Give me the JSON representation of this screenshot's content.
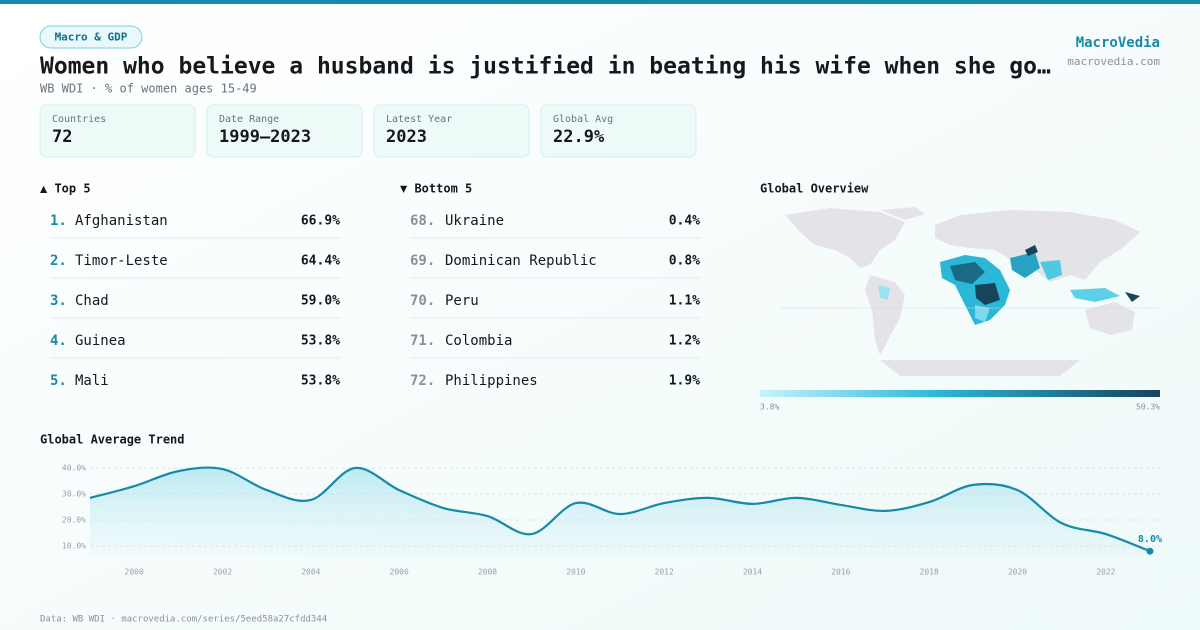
{
  "header": {
    "tag": "Macro & GDP",
    "title": "Women who believe a husband is justified in beating his wife when she go…",
    "subtitle": "WB WDI · % of women ages 15-49",
    "brand": "MacroVedia",
    "site": "macrovedia.com"
  },
  "stats": [
    {
      "label": "Countries",
      "value": "72"
    },
    {
      "label": "Date Range",
      "value": "1999–2023"
    },
    {
      "label": "Latest Year",
      "value": "2023"
    },
    {
      "label": "Global Avg",
      "value": "22.9%"
    }
  ],
  "top": {
    "title": "▲ Top 5",
    "items": [
      {
        "rank": "1.",
        "name": "Afghanistan",
        "value": "66.9%"
      },
      {
        "rank": "2.",
        "name": "Timor-Leste",
        "value": "64.4%"
      },
      {
        "rank": "3.",
        "name": "Chad",
        "value": "59.0%"
      },
      {
        "rank": "4.",
        "name": "Guinea",
        "value": "53.8%"
      },
      {
        "rank": "5.",
        "name": "Mali",
        "value": "53.8%"
      }
    ]
  },
  "bottom": {
    "title": "▼ Bottom 5",
    "items": [
      {
        "rank": "68.",
        "name": "Ukraine",
        "value": "0.4%"
      },
      {
        "rank": "69.",
        "name": "Dominican Republic",
        "value": "0.8%"
      },
      {
        "rank": "70.",
        "name": "Peru",
        "value": "1.1%"
      },
      {
        "rank": "71.",
        "name": "Colombia",
        "value": "1.2%"
      },
      {
        "rank": "72.",
        "name": "Philippines",
        "value": "1.9%"
      }
    ]
  },
  "map": {
    "title": "Global Overview",
    "legend_min": "3.8%",
    "legend_max": "50.3%"
  },
  "chart_data": {
    "type": "line",
    "title": "Global Average Trend",
    "x": [
      1999,
      2000,
      2001,
      2002,
      2003,
      2004,
      2005,
      2006,
      2007,
      2008,
      2009,
      2010,
      2011,
      2012,
      2013,
      2014,
      2015,
      2016,
      2017,
      2018,
      2019,
      2020,
      2021,
      2022,
      2023
    ],
    "values": [
      28.5,
      33,
      38.8,
      39.6,
      31.5,
      27.7,
      40,
      31.5,
      24.6,
      21.5,
      14.6,
      26.5,
      22.3,
      26.5,
      28.5,
      26.2,
      28.5,
      25.8,
      23.5,
      26.9,
      33.5,
      31.5,
      18.8,
      14.6,
      8.0
    ],
    "value_labels": [
      null,
      null,
      null,
      null,
      null,
      null,
      null,
      null,
      null,
      null,
      null,
      null,
      null,
      null,
      null,
      null,
      null,
      null,
      null,
      null,
      null,
      null,
      null,
      null,
      "8.0%"
    ],
    "color": "#168aa6",
    "xlim": [
      1999,
      2023
    ],
    "xticks": [
      2000,
      2002,
      2004,
      2006,
      2008,
      2010,
      2012,
      2014,
      2016,
      2018,
      2020,
      2022
    ],
    "ylim": [
      6,
      42
    ],
    "yticks": [
      {
        "value": 10,
        "label": "10.0%"
      },
      {
        "value": 20,
        "label": "20.0%"
      },
      {
        "value": 30,
        "label": "30.0%"
      },
      {
        "value": 40,
        "label": "40.0%"
      }
    ],
    "grid": true
  },
  "footer": "Data: WB WDI · macrovedia.com/series/5eed58a27cfdd344"
}
